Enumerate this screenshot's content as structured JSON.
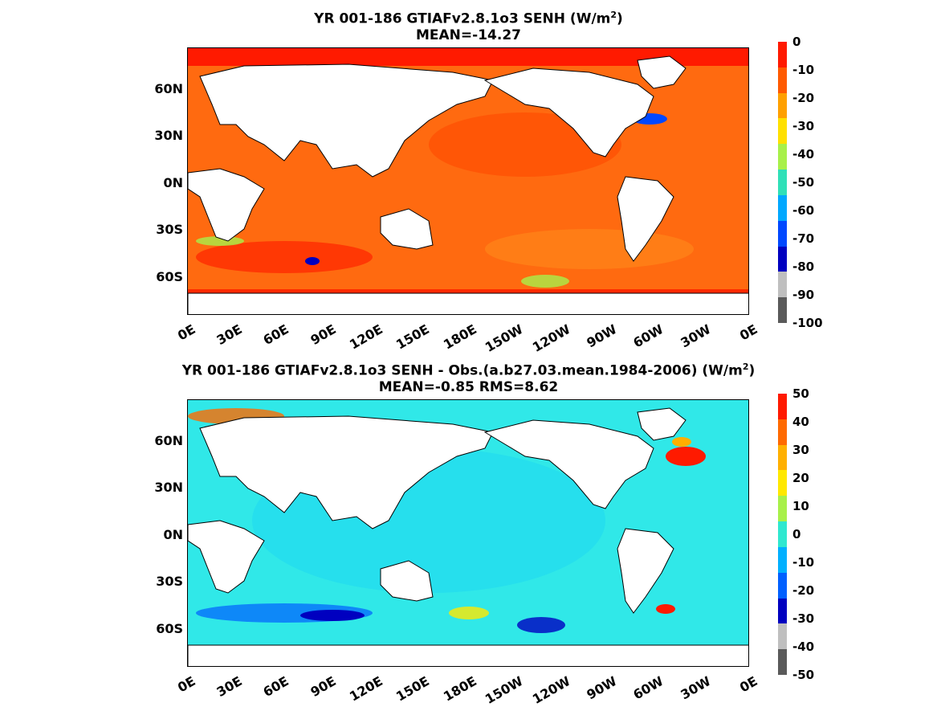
{
  "panels": [
    {
      "title_main": "YR 001-186 GTIAFv2.8.1o3  SENH (W/m",
      "title_sup": "2",
      "title_end": ")",
      "subtitle": "MEAN=-14.27",
      "colorbar_ticks": [
        "0",
        "-10",
        "-20",
        "-30",
        "-40",
        "-50",
        "-60",
        "-70",
        "-80",
        "-90",
        "-100"
      ],
      "colorbar_colors": [
        "#ff1a00",
        "#ff5a00",
        "#ffa000",
        "#ffe000",
        "#a8f04a",
        "#30e0b8",
        "#00a8ff",
        "#0048ff",
        "#0000c0",
        "#bfbfbf",
        "#5a5a5a"
      ],
      "ocean_color": "#ff6a10"
    },
    {
      "title_main": "YR 001-186 GTIAFv2.8.1o3 SENH - Obs.(a.b27.03.mean.1984-2006) (W/m",
      "title_sup": "2",
      "title_end": ")",
      "subtitle": "MEAN=-0.85 RMS=8.62",
      "colorbar_ticks": [
        "50",
        "40",
        "30",
        "20",
        "10",
        "0",
        "-10",
        "-20",
        "-30",
        "-40",
        "-50"
      ],
      "colorbar_colors": [
        "#ff1a00",
        "#ff6a00",
        "#ffb000",
        "#ffe800",
        "#a8f04a",
        "#30e8d0",
        "#00b0ff",
        "#0060ff",
        "#0000c0",
        "#bfbfbf",
        "#5a5a5a"
      ],
      "ocean_color": "#30e8e8"
    }
  ],
  "lat_labels": [
    "60N",
    "30N",
    "0N",
    "30S",
    "60S"
  ],
  "lon_labels": [
    "0E",
    "30E",
    "60E",
    "90E",
    "120E",
    "150E",
    "180E",
    "150W",
    "120W",
    "90W",
    "60W",
    "30W",
    "0E"
  ]
}
